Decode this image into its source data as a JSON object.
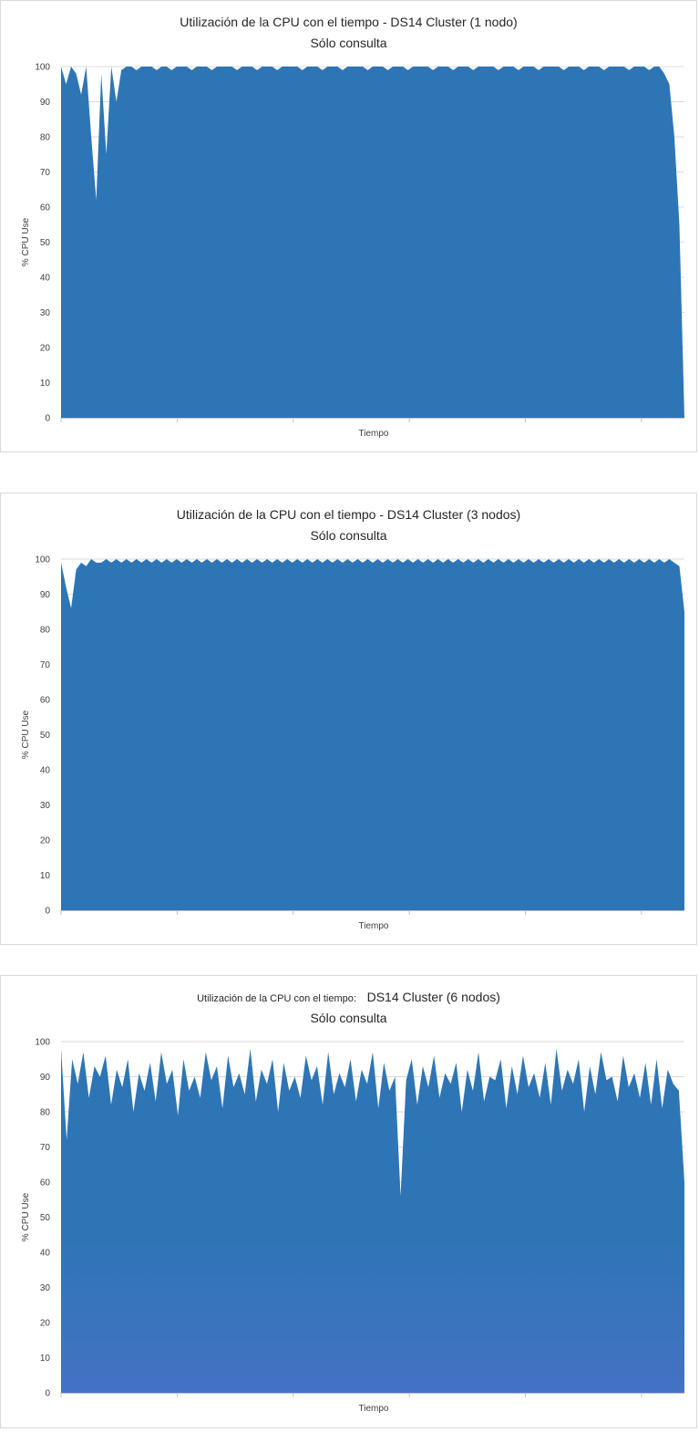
{
  "charts": [
    {
      "title_line1": "Utilización de la CPU con el tiempo - DS14 Cluster (1 nodo)",
      "title_line2": "Sólo consulta"
    },
    {
      "title_line1": "Utilización de la CPU con el tiempo - DS14 Cluster (3 nodos)",
      "title_line2": "Sólo consulta"
    },
    {
      "title_line1_prefix": "Utilización de la CPU con el tiempo:",
      "title_line1_suffix": "DS14 Cluster (6 nodos)",
      "title_line2": "Sólo consulta"
    }
  ],
  "chart_data": [
    {
      "type": "area",
      "title": "Utilización de la CPU con el tiempo - DS14 Cluster (1 nodo)",
      "subtitle": "Sólo consulta",
      "xlabel": "Tiempo",
      "ylabel": "% CPU Use",
      "ylim": [
        0,
        100
      ],
      "yticks": [
        0,
        10,
        20,
        30,
        40,
        50,
        60,
        70,
        80,
        90,
        100
      ],
      "grid": true,
      "legend": "none",
      "color": "#2e75b6",
      "series": [
        {
          "values": [
            100,
            95,
            100,
            98,
            92,
            100,
            80,
            62,
            98,
            75,
            100,
            90,
            99,
            100,
            100,
            99,
            100,
            100,
            100,
            99,
            100,
            100,
            99,
            100,
            100,
            100,
            99,
            100,
            100,
            100,
            99,
            100,
            100,
            100,
            100,
            99,
            100,
            100,
            100,
            99,
            100,
            100,
            100,
            99,
            100,
            100,
            100,
            100,
            99,
            100,
            100,
            100,
            99,
            100,
            100,
            100,
            99,
            100,
            100,
            100,
            100,
            99,
            100,
            100,
            100,
            99,
            100,
            100,
            100,
            99,
            100,
            100,
            100,
            100,
            99,
            100,
            100,
            100,
            99,
            100,
            100,
            100,
            99,
            100,
            100,
            100,
            100,
            99,
            100,
            100,
            100,
            99,
            100,
            100,
            100,
            99,
            100,
            100,
            100,
            100,
            99,
            100,
            100,
            100,
            99,
            100,
            100,
            100,
            99,
            100,
            100,
            100,
            100,
            99,
            100,
            100,
            100,
            99,
            100,
            100,
            98,
            95,
            80,
            55,
            0
          ]
        }
      ]
    },
    {
      "type": "area",
      "title": "Utilización de la CPU con el tiempo - DS14 Cluster (3 nodos)",
      "subtitle": "Sólo consulta",
      "xlabel": "Tiempo",
      "ylabel": "% CPU Use",
      "ylim": [
        0,
        100
      ],
      "yticks": [
        0,
        10,
        20,
        30,
        40,
        50,
        60,
        70,
        80,
        90,
        100
      ],
      "grid": true,
      "legend": "none",
      "color": "#2e75b6",
      "series": [
        {
          "values": [
            99,
            92,
            86,
            97,
            99,
            98,
            100,
            99,
            99,
            100,
            99,
            100,
            99,
            100,
            99,
            100,
            99,
            100,
            99,
            100,
            99,
            100,
            99,
            100,
            99,
            100,
            99,
            100,
            99,
            100,
            99,
            100,
            99,
            100,
            99,
            100,
            99,
            100,
            99,
            100,
            99,
            100,
            99,
            100,
            99,
            100,
            99,
            100,
            99,
            100,
            99,
            100,
            99,
            100,
            99,
            100,
            99,
            100,
            99,
            100,
            99,
            100,
            99,
            100,
            99,
            100,
            99,
            100,
            99,
            100,
            99,
            100,
            99,
            100,
            99,
            100,
            99,
            100,
            99,
            100,
            99,
            100,
            99,
            100,
            99,
            100,
            99,
            100,
            99,
            100,
            99,
            100,
            99,
            100,
            99,
            100,
            99,
            100,
            99,
            100,
            99,
            100,
            99,
            100,
            99,
            100,
            99,
            100,
            99,
            100,
            99,
            100,
            99,
            100,
            99,
            100,
            99,
            100,
            99,
            100,
            99,
            100,
            99,
            98,
            85
          ]
        }
      ]
    },
    {
      "type": "area",
      "title": "Utilización de la CPU con el tiempo: DS14 Cluster (6 nodos)",
      "subtitle": "Sólo consulta",
      "xlabel": "Tiempo",
      "ylabel": "% CPU Use",
      "ylim": [
        0,
        100
      ],
      "yticks": [
        0,
        10,
        20,
        30,
        40,
        50,
        60,
        70,
        80,
        90,
        100
      ],
      "grid": true,
      "legend": "none",
      "color": "#2e75b6",
      "color_low": "#4472c4",
      "series": [
        {
          "values": [
            98,
            72,
            95,
            88,
            97,
            84,
            93,
            90,
            96,
            82,
            92,
            87,
            95,
            80,
            91,
            86,
            94,
            83,
            97,
            88,
            92,
            79,
            95,
            86,
            90,
            84,
            97,
            89,
            93,
            81,
            96,
            87,
            91,
            85,
            98,
            83,
            92,
            88,
            95,
            80,
            94,
            86,
            90,
            84,
            96,
            89,
            93,
            82,
            97,
            85,
            91,
            87,
            95,
            83,
            92,
            88,
            97,
            81,
            94,
            86,
            90,
            56,
            89,
            95,
            82,
            93,
            87,
            96,
            84,
            91,
            88,
            94,
            80,
            92,
            86,
            97,
            83,
            90,
            89,
            95,
            81,
            93,
            85,
            96,
            87,
            91,
            84,
            94,
            82,
            98,
            86,
            92,
            88,
            95,
            80,
            93,
            85,
            97,
            89,
            90,
            83,
            96,
            87,
            91,
            84,
            94,
            82,
            95,
            81,
            92,
            88,
            86,
            60
          ]
        }
      ]
    }
  ]
}
